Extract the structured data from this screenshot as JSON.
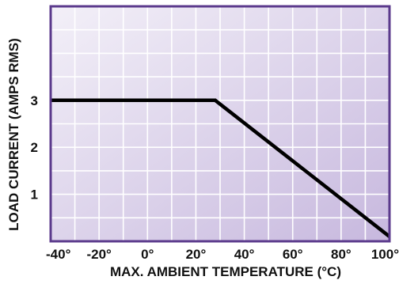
{
  "chart_data": {
    "type": "line",
    "title": "",
    "xlabel": "MAX. AMBIENT TEMPERATURE (°C)",
    "ylabel": "LOAD CURRENT (AMPS RMS)",
    "xlim": [
      -40,
      100
    ],
    "ylim": [
      0,
      5
    ],
    "x_ticks": [
      -40,
      -20,
      0,
      20,
      40,
      60,
      80,
      100
    ],
    "x_tick_labels": [
      "-40°",
      "-20°",
      "0°",
      "20°",
      "40°",
      "60°",
      "80°",
      "100°"
    ],
    "y_ticks": [
      1,
      2,
      3
    ],
    "y_tick_labels": [
      "1",
      "2",
      "3"
    ],
    "x_minor_step": 10,
    "y_minor_step": 0.5,
    "grid": true,
    "series": [
      {
        "x": [
          -40,
          28,
          100
        ],
        "y": [
          3,
          3,
          0.1
        ]
      }
    ],
    "colors": {
      "frame": "#5b3a8c",
      "grid": "#ffffff",
      "line": "#000000",
      "bg_light": "#f3f0f8",
      "bg_dark": "#c7b8de"
    }
  }
}
